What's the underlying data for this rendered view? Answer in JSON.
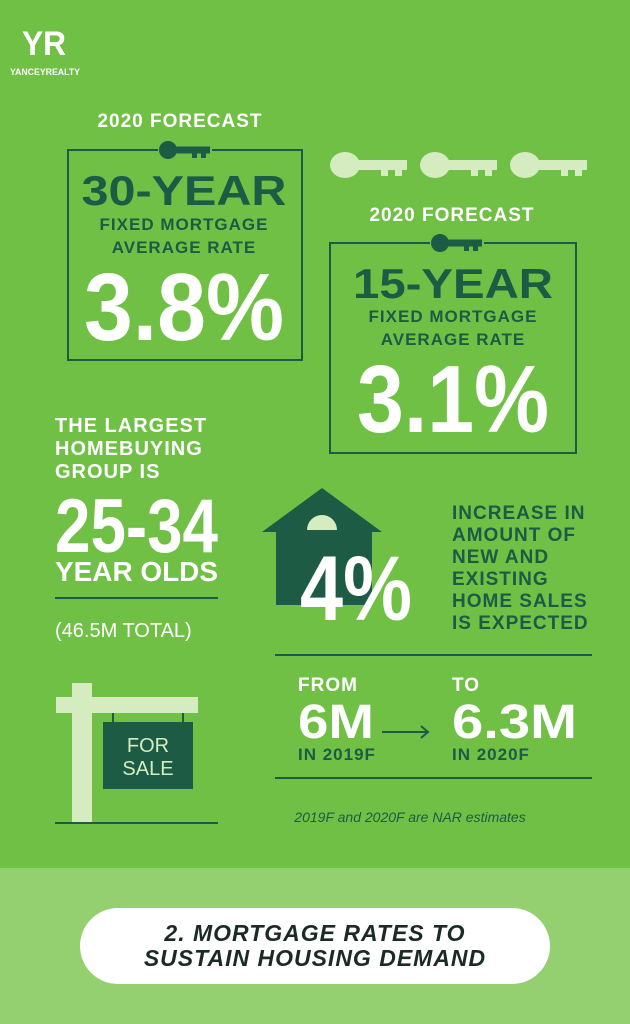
{
  "logo": {
    "mark": "YR",
    "name": "YANCEYREALTY"
  },
  "forecasts": [
    {
      "label": "2020 FORECAST",
      "term": "30-YEAR",
      "description": [
        "FIXED MORTGAGE",
        "AVERAGE RATE"
      ],
      "rate": "3.8%"
    },
    {
      "label": "2020 FORECAST",
      "term": "15-YEAR",
      "description": [
        "FIXED MORTGAGE",
        "AVERAGE RATE"
      ],
      "rate": "3.1%"
    }
  ],
  "buyers": {
    "intro": [
      "THE LARGEST",
      "HOMEBUYING",
      "GROUP IS"
    ],
    "ages": "25-34",
    "unit": "YEAR OLDS",
    "total": "(46.5M TOTAL)"
  },
  "sales": {
    "change": "4%",
    "description": [
      "INCREASE IN",
      "AMOUNT OF",
      "NEW AND",
      "EXISTING",
      "HOME SALES",
      "IS EXPECTED"
    ],
    "from": {
      "label": "FROM",
      "value": "6M",
      "year": "IN 2019F"
    },
    "to": {
      "label": "TO",
      "value": "6.3M",
      "year": "IN 2020F"
    },
    "note": "2019F and 2020F are NAR estimates"
  },
  "sign": [
    "FOR",
    "SALE"
  ],
  "footer": [
    "2. MORTGAGE RATES TO",
    "SUSTAIN HOUSING DEMAND"
  ]
}
